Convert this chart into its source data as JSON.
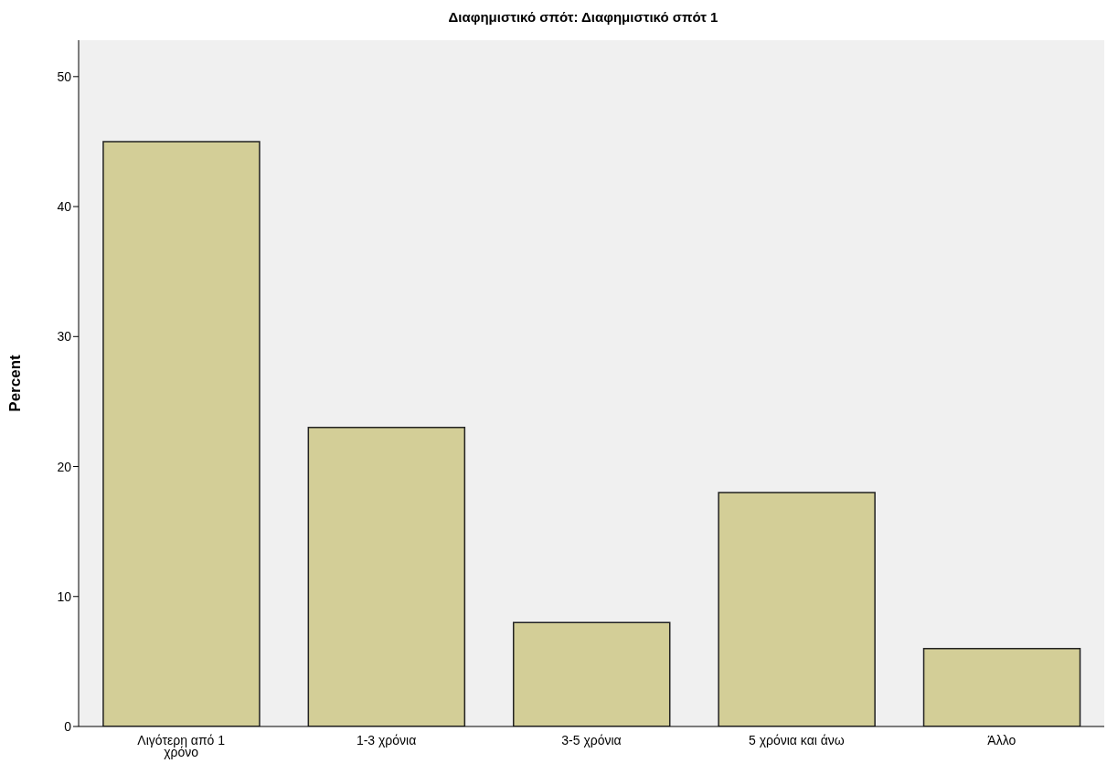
{
  "chart_data": {
    "type": "bar",
    "title": "Διαφημιστικό σπότ: Διαφημιστικό σπότ 1",
    "ylabel": "Percent",
    "categories": [
      "Λιγότερη από 1 χρόνο",
      "1-3 χρόνια",
      "3-5 χρόνια",
      "5 χρόνια και άνω",
      "Άλλο"
    ],
    "values": [
      45,
      23,
      8,
      18,
      6
    ],
    "color": "#d3ce97",
    "ylim": [
      0,
      52.8
    ],
    "yticks": [
      0,
      10,
      20,
      30,
      40,
      50
    ],
    "grid": false,
    "legend": false
  }
}
